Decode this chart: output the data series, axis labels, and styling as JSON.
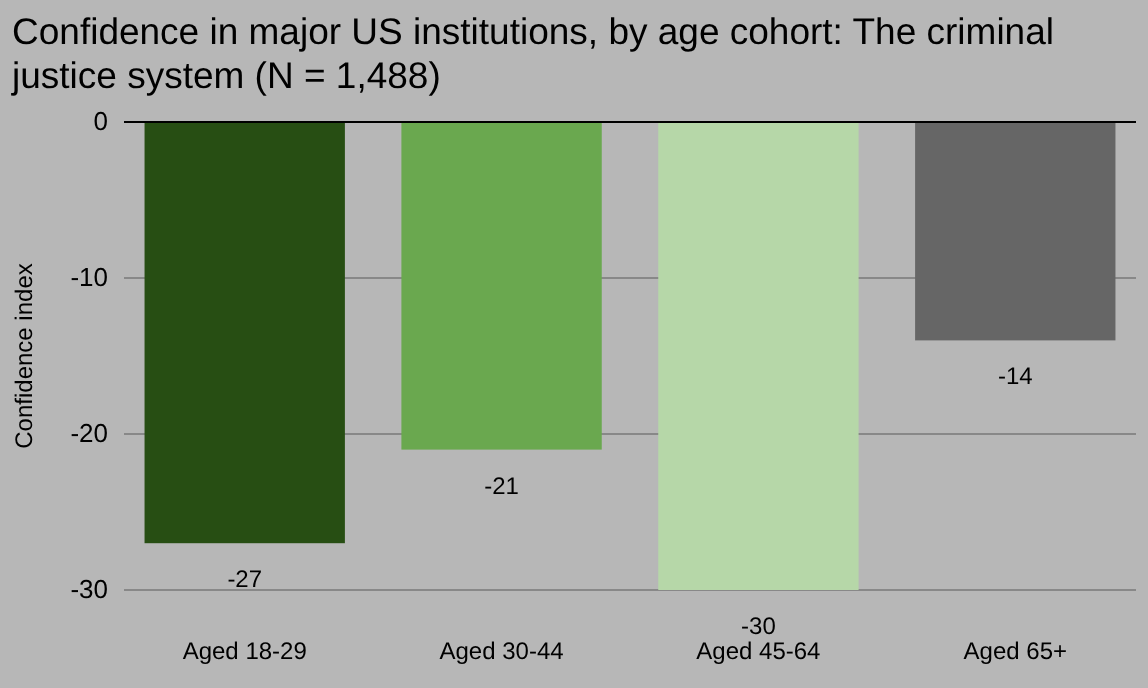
{
  "chart_data": {
    "type": "bar",
    "title": "Confidence in major US institutions, by age cohort: The criminal justice system (N = 1,488)",
    "ylabel": "Confidence index",
    "categories": [
      "Aged 18-29",
      "Aged 30-44",
      "Aged 45-64",
      "Aged 65+"
    ],
    "values": [
      -27,
      -21,
      -30,
      -14
    ],
    "colors": [
      "#274e13",
      "#6aa84f",
      "#b6d7a8",
      "#666666"
    ],
    "ylim": [
      -30,
      0
    ],
    "yticks": [
      0,
      -10,
      -20,
      -30
    ],
    "grid": "y",
    "data_labels": true
  }
}
